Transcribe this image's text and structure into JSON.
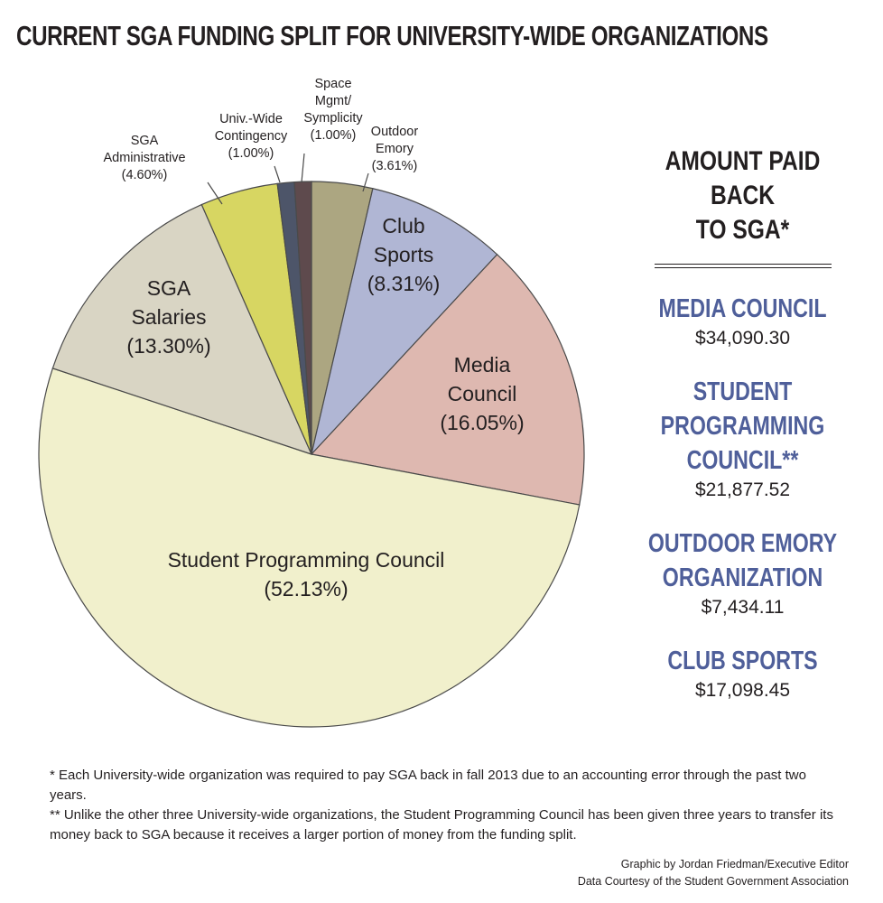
{
  "title": "CURRENT SGA FUNDING SPLIT FOR UNIVERSITY-WIDE ORGANIZATIONS",
  "chart_data": {
    "type": "pie",
    "title": "CURRENT SGA FUNDING SPLIT FOR UNIVERSITY-WIDE ORGANIZATIONS",
    "slices": [
      {
        "name": "Outdoor Emory",
        "label_lines": [
          "Outdoor",
          "Emory"
        ],
        "pct_text": "(3.61%)",
        "value": 3.61,
        "color": "#aca681",
        "label_style": "small"
      },
      {
        "name": "Club Sports",
        "label_lines": [
          "Club",
          "Sports"
        ],
        "pct_text": "(8.31%)",
        "value": 8.31,
        "color": "#b0b6d4",
        "label_style": "big"
      },
      {
        "name": "Media Council",
        "label_lines": [
          "Media",
          "Council"
        ],
        "pct_text": "(16.05%)",
        "value": 16.05,
        "color": "#deb8b0",
        "label_style": "big"
      },
      {
        "name": "Student Programming Council",
        "label_lines": [
          "Student Programming Council"
        ],
        "pct_text": "(52.13%)",
        "value": 52.13,
        "color": "#f1f0cc",
        "label_style": "big"
      },
      {
        "name": "SGA Salaries",
        "label_lines": [
          "SGA",
          "Salaries"
        ],
        "pct_text": "(13.30%)",
        "value": 13.3,
        "color": "#d9d5c4",
        "label_style": "big"
      },
      {
        "name": "SGA Administrative",
        "label_lines": [
          "SGA",
          "Administrative"
        ],
        "pct_text": "(4.60%)",
        "value": 4.6,
        "color": "#d7d662",
        "label_style": "small"
      },
      {
        "name": "Univ.-Wide Contingency",
        "label_lines": [
          "Univ.-Wide",
          "Contingency"
        ],
        "pct_text": "(1.00%)",
        "value": 1.0,
        "color": "#4d5569",
        "label_style": "small"
      },
      {
        "name": "Space Mgmt/ Symplicity",
        "label_lines": [
          "Space",
          "Mgmt/",
          "Symplicity"
        ],
        "pct_text": "(1.00%)",
        "value": 1.0,
        "color": "#5e4a4d",
        "label_style": "small"
      }
    ]
  },
  "side_panel": {
    "heading_line1": "AMOUNT PAID BACK",
    "heading_line2": "TO SGA*",
    "items": [
      {
        "name_line1": "MEDIA COUNCIL",
        "name_line2": "",
        "amount": "$34,090.30"
      },
      {
        "name_line1": "STUDENT PROGRAMMING",
        "name_line2": "COUNCIL**",
        "amount": "$21,877.52"
      },
      {
        "name_line1": "OUTDOOR EMORY",
        "name_line2": "ORGANIZATION",
        "amount": "$7,434.11"
      },
      {
        "name_line1": "CLUB SPORTS",
        "name_line2": "",
        "amount": "$17,098.45"
      }
    ]
  },
  "footnotes": {
    "note1": "* Each University-wide organization was required to pay SGA back in fall 2013 due to an accounting error through the past two years.",
    "note2": "** Unlike the other three University-wide organizations, the Student Programming Council has been given three years to transfer its money back to SGA because it receives a larger portion of money from the funding split."
  },
  "credits": {
    "line1": "Graphic by Jordan Friedman/Executive Editor",
    "line2": "Data Courtesy of the Student Government Association"
  }
}
